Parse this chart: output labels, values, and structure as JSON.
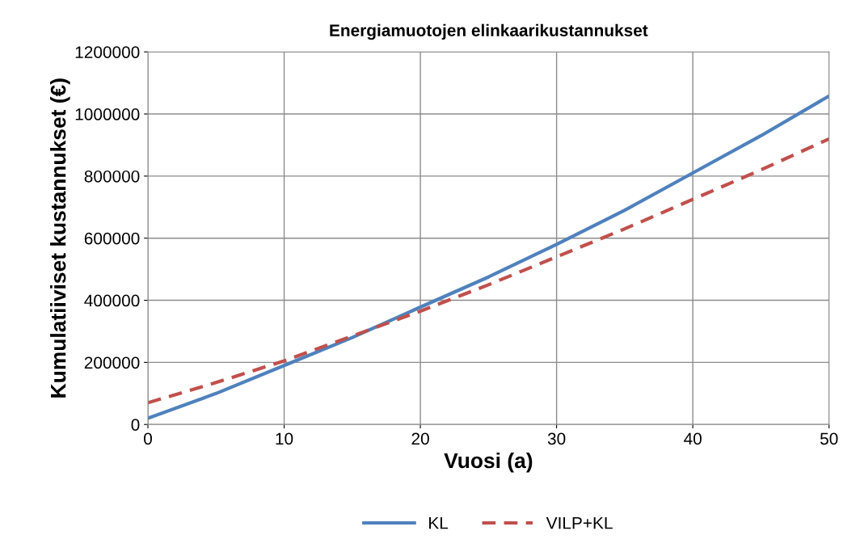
{
  "chart_data": {
    "type": "line",
    "title": "Energiamuotojen elinkaarikustannukset",
    "xlabel": "Vuosi (a)",
    "ylabel": "Kumulatiiviset kustannukset (€)",
    "x": [
      0,
      5,
      10,
      15,
      20,
      25,
      30,
      35,
      40,
      45,
      50
    ],
    "series": [
      {
        "name": "KL",
        "color": "#4f81bd",
        "line_style": "solid",
        "values": [
          20000,
          100000,
          190000,
          280000,
          378000,
          475000,
          580000,
          690000,
          810000,
          930000,
          1058000
        ]
      },
      {
        "name": "VILP+KL",
        "color": "#c0504d",
        "line_style": "dashed",
        "values": [
          70000,
          135000,
          205000,
          285000,
          365000,
          450000,
          540000,
          630000,
          725000,
          820000,
          920000
        ]
      }
    ],
    "xlim": [
      0,
      50
    ],
    "xticks": [
      0,
      10,
      20,
      30,
      40,
      50
    ],
    "ylim": [
      0,
      1200000
    ],
    "yticks": [
      0,
      200000,
      400000,
      600000,
      800000,
      1000000,
      1200000
    ],
    "grid": true,
    "legend": "bottom",
    "marker": "none"
  }
}
